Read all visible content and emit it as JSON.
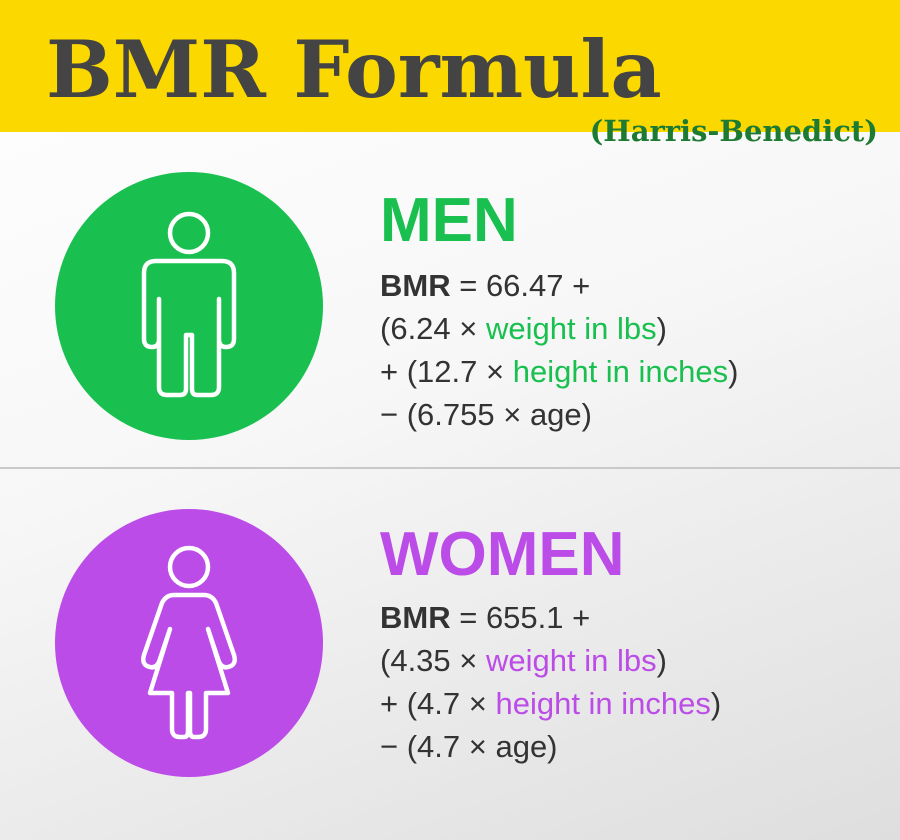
{
  "title": "BMR Formula",
  "subtitle": "(Harris-Benedict)",
  "colors": {
    "header_bg": "#fbd800",
    "title": "#444444",
    "subtitle": "#1d7a32",
    "men_accent": "#19c050",
    "women_accent": "#bb4ce8",
    "formula_text": "#333333"
  },
  "men": {
    "icon": "man-icon",
    "heading": "MEN",
    "lines": [
      {
        "label": "BMR",
        "pre": " = 66.47 +",
        "highlight": "",
        "post": ""
      },
      {
        "label": "",
        "pre": "(6.24 × ",
        "highlight": "weight in lbs",
        "post": ")"
      },
      {
        "label": "",
        "pre": "+ (12.7 × ",
        "highlight": "height in inches",
        "post": ")"
      },
      {
        "label": "",
        "pre": "− (6.755 × age)",
        "highlight": "",
        "post": ""
      }
    ]
  },
  "women": {
    "icon": "woman-icon",
    "heading": "WOMEN",
    "lines": [
      {
        "label": "BMR",
        "pre": " = 655.1 +",
        "highlight": "",
        "post": ""
      },
      {
        "label": "",
        "pre": "(4.35 × ",
        "highlight": "weight in lbs",
        "post": ")"
      },
      {
        "label": "",
        "pre": "+ (4.7 × ",
        "highlight": "height in inches",
        "post": ")"
      },
      {
        "label": "",
        "pre": "− (4.7 × age)",
        "highlight": "",
        "post": ""
      }
    ]
  }
}
